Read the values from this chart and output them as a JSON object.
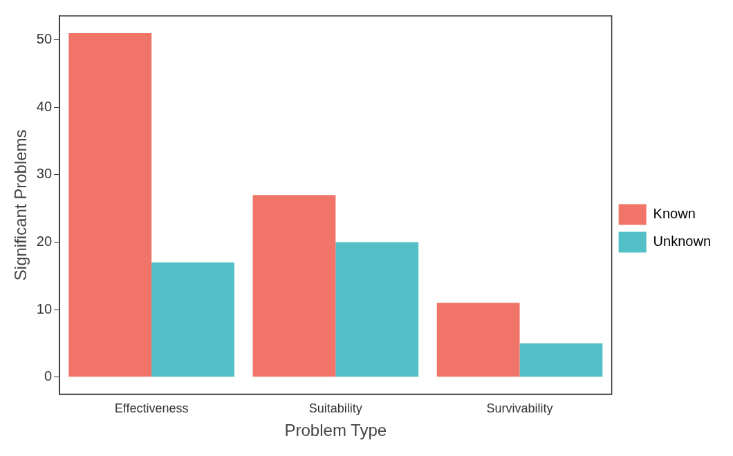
{
  "chart_data": {
    "type": "bar",
    "xlabel": "Problem Type",
    "ylabel": "Significant Problems",
    "categories": [
      "Effectiveness",
      "Suitability",
      "Survivability"
    ],
    "series": [
      {
        "name": "Known",
        "color": "#f07468",
        "values": [
          51,
          27,
          11
        ]
      },
      {
        "name": "Unknown",
        "color": "#52c0c6",
        "values": [
          17,
          20,
          5
        ]
      }
    ],
    "ylim": [
      -2.55,
      53.55
    ],
    "yticks": [
      0,
      10,
      20,
      30,
      40,
      50
    ],
    "grid": false,
    "legend": "right"
  }
}
